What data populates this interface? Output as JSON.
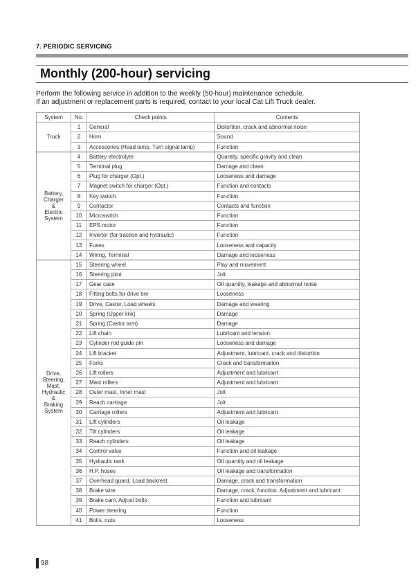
{
  "header": {
    "section": "7. PERIODIC SERVICING"
  },
  "title": "Monthly (200-hour) servicing",
  "intro": [
    "Perform the following service in addition to the weekly (50-hour) maintenance schedule.",
    "If an adjustment or replacement parts is required, contact to your local Cat Lift Truck dealer."
  ],
  "table": {
    "columns": [
      "System",
      "No.",
      "Check points",
      "Contents"
    ],
    "groups": [
      {
        "system": [
          "Truck"
        ],
        "rows": [
          [
            "1",
            "General",
            "Distortion, crack and abnormal noise"
          ],
          [
            "2",
            "Horn",
            "Sound"
          ],
          [
            "3",
            "Accessories (Head lamp, Turn signal lamp)",
            "Function"
          ]
        ]
      },
      {
        "system": [
          "Battery,",
          "Charger",
          "&",
          "Electric",
          "System"
        ],
        "rows": [
          [
            "4",
            "Battery electrolyte",
            "Quantity, specific gravity and clean"
          ],
          [
            "5",
            "Terminal plug",
            "Damage and clean"
          ],
          [
            "6",
            "Plug for charger (Opt.)",
            "Looseness and damage"
          ],
          [
            "7",
            "Magnet switch for charger (Opt.)",
            "Function and contacts"
          ],
          [
            "8",
            "Key switch",
            "Function"
          ],
          [
            "9",
            "Contactor",
            "Contacts and function"
          ],
          [
            "10",
            "Microswitch",
            "Function"
          ],
          [
            "11",
            "EPS motor",
            "Function"
          ],
          [
            "12",
            "Inverter (for traction and hydraulic)",
            "Function"
          ],
          [
            "13",
            "Fuses",
            "Looseness and capacity"
          ],
          [
            "14",
            "Wiring, Terminal",
            "Damage and looseness"
          ]
        ]
      },
      {
        "system": [
          "Drive,",
          "Steering,",
          "Mast,",
          "Hydraulic",
          "&",
          "Braking",
          "System"
        ],
        "rows": [
          [
            "15",
            "Steering wheel",
            "Play and movement"
          ],
          [
            "16",
            "Steering joint",
            "Jolt"
          ],
          [
            "17",
            "Gear case",
            "Oil quantity, leakage and abnormal noise"
          ],
          [
            "18",
            "Fitting bolts for drive tire",
            "Looseness"
          ],
          [
            "19",
            "Drive, Castor, Load wheels",
            "Damage and wearing"
          ],
          [
            "20",
            "Spring (Upper link)",
            "Damage"
          ],
          [
            "21",
            "Spring (Castor arm)",
            "Damage"
          ],
          [
            "22",
            "Lift chain",
            "Lubricant and tension"
          ],
          [
            "23",
            "Cylinder rod guide pin",
            "Looseness and damage"
          ],
          [
            "24",
            "Lift bracket",
            "Adjustment, lubricant, crack and distortion"
          ],
          [
            "25",
            "Forks",
            "Crack and transformation"
          ],
          [
            "26",
            "Lift rollers",
            "Adjustment and lubricant"
          ],
          [
            "27",
            "Mast rollers",
            "Adjustment and lubricant"
          ],
          [
            "28",
            "Outer mast, Inner mast",
            "Jolt"
          ],
          [
            "29",
            "Reach carriage",
            "Jolt"
          ],
          [
            "30",
            "Carriage rollers",
            "Adjustment and lubricant"
          ],
          [
            "31",
            "Lift cylinders",
            "Oil leakage"
          ],
          [
            "32",
            "Tilt cylinders",
            "Oil leakage"
          ],
          [
            "33",
            "Reach cylinders",
            "Oil leakage"
          ],
          [
            "34",
            "Control valve",
            "Function and oil leakage"
          ],
          [
            "35",
            "Hydraulic tank",
            "Oil quantity and oil leakage"
          ],
          [
            "36",
            "H.P. hoses",
            "Oil leakage and transformation"
          ],
          [
            "37",
            "Overhead guard, Load backrest",
            "Damage, crack and transformation"
          ],
          [
            "38",
            "Brake wire",
            "Damage, crack, function. Adjustment and lubricant"
          ],
          [
            "39",
            "Brake cam, Adjust bolts",
            "Function and lubricant"
          ],
          [
            "40",
            "Power steering",
            "Function"
          ],
          [
            "41",
            "Bolts, nuts",
            "Looseness"
          ]
        ]
      }
    ]
  },
  "page_number": "98"
}
